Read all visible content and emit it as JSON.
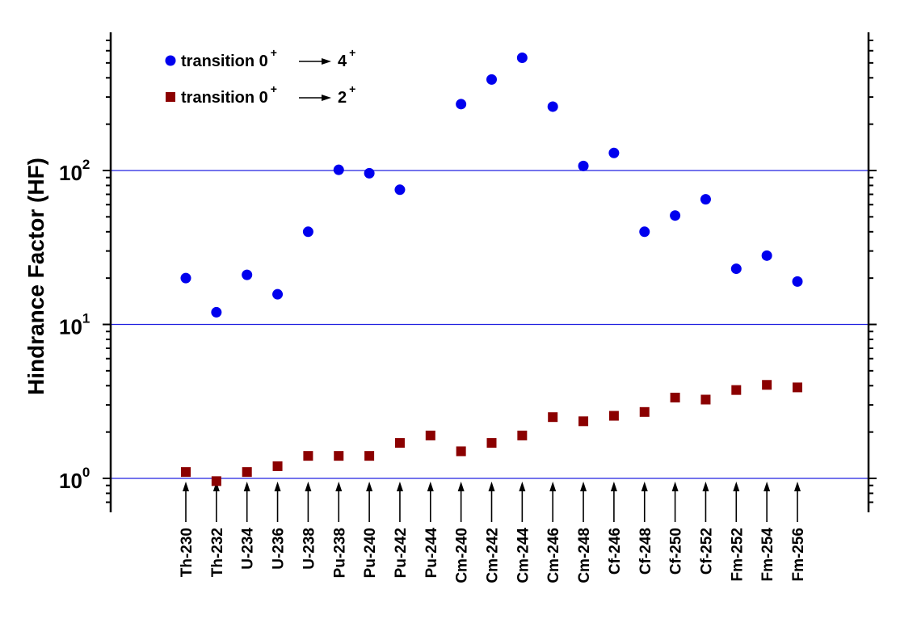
{
  "chart_data": {
    "type": "scatter",
    "ylabel": "Hindrance Factor (HF)",
    "yscale": "log",
    "ylim": [
      0.6,
      900
    ],
    "y_ticks": [
      {
        "value": 1,
        "base": "10",
        "exp": "0"
      },
      {
        "value": 10,
        "base": "10",
        "exp": "1"
      },
      {
        "value": 100,
        "base": "10",
        "exp": "2"
      }
    ],
    "gridlines": [
      1,
      10,
      100
    ],
    "grid_color": "#2020e0",
    "categories": [
      "Th-230",
      "Th-232",
      "U-234",
      "U-236",
      "U-238",
      "Pu-238",
      "Pu-240",
      "Pu-242",
      "Pu-244",
      "Cm-240",
      "Cm-242",
      "Cm-244",
      "Cm-246",
      "Cm-248",
      "Cf-246",
      "Cf-248",
      "Cf-250",
      "Cf-252",
      "Fm-252",
      "Fm-254",
      "Fm-256"
    ],
    "legend": {
      "position": "top-left",
      "entries": [
        {
          "prefix": "transition 0",
          "sup1": "+",
          "arrow": "→",
          "target": "4",
          "sup2": "+"
        },
        {
          "prefix": "transition 0",
          "sup1": "+",
          "arrow": "→",
          "target": "2",
          "sup2": "+"
        }
      ]
    },
    "series": [
      {
        "name": "transition 0+ → 4+",
        "marker": "circle",
        "color": "#0000ee",
        "values": [
          20,
          12,
          21,
          15.7,
          40,
          101,
          96,
          75,
          null,
          270,
          390,
          540,
          260,
          107,
          130,
          40,
          51,
          65,
          23,
          28,
          19
        ]
      },
      {
        "name": "transition 0+ → 2+",
        "marker": "square",
        "color": "#8b0000",
        "values": [
          1.1,
          0.96,
          1.1,
          1.2,
          1.4,
          1.4,
          1.4,
          1.7,
          1.9,
          1.5,
          1.7,
          1.9,
          2.5,
          2.35,
          2.55,
          2.7,
          3.35,
          3.25,
          3.75,
          4.05,
          3.9
        ]
      }
    ]
  }
}
